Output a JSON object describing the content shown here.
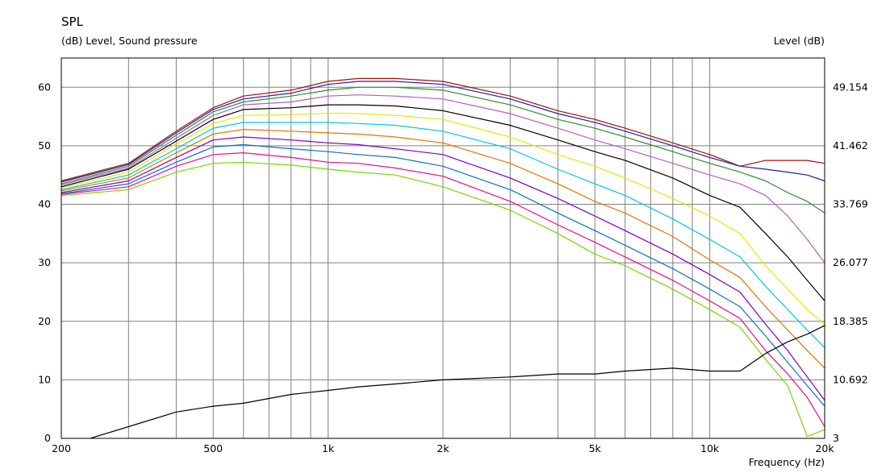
{
  "chart_data": {
    "type": "line",
    "title": "SPL",
    "ylabel_left": "(dB)  Level, Sound pressure",
    "ylabel_right": "Level  (dB)",
    "xlabel": "Frequency  (Hz)",
    "x_scale": "log",
    "xlim": [
      200,
      20000
    ],
    "ylim": [
      0,
      65
    ],
    "grid": true,
    "x_tick_labels": [
      {
        "value": 200,
        "label": "200"
      },
      {
        "value": 500,
        "label": "500"
      },
      {
        "value": 1000,
        "label": "1k"
      },
      {
        "value": 2000,
        "label": "2k"
      },
      {
        "value": 5000,
        "label": "5k"
      },
      {
        "value": 10000,
        "label": "10k"
      },
      {
        "value": 20000,
        "label": "20k"
      }
    ],
    "y_left_ticks": [
      0,
      10,
      20,
      30,
      40,
      50,
      60
    ],
    "y_right_tick_labels": [
      "3",
      "10.692",
      "18.385",
      "26.077",
      "33.769",
      "41.462",
      "49.154"
    ],
    "x": [
      200,
      300,
      400,
      500,
      600,
      800,
      1000,
      1200,
      1500,
      2000,
      3000,
      4000,
      5000,
      6000,
      8000,
      10000,
      12000,
      14000,
      16000,
      18000,
      20000
    ],
    "series": [
      {
        "color": "#a01010",
        "values": [
          44,
          47,
          52.5,
          56.5,
          58.5,
          59.5,
          61,
          61.5,
          61.5,
          61,
          58.5,
          56,
          54.5,
          53,
          50.5,
          48.5,
          46.5,
          47.5,
          47.5,
          47.5,
          47
        ]
      },
      {
        "color": "#2020a0",
        "values": [
          43.8,
          46.8,
          52.2,
          56.2,
          58,
          59,
          60.5,
          61,
          61,
          60.5,
          58,
          55.5,
          54,
          52.5,
          50,
          48,
          46.5,
          46,
          45.5,
          45,
          44
        ]
      },
      {
        "color": "#2e8b2e",
        "values": [
          43.5,
          46.5,
          51.8,
          55.8,
          57.5,
          58.5,
          59.5,
          60,
          60,
          59.5,
          57,
          54.5,
          53,
          51.5,
          49,
          47,
          45.5,
          44,
          42,
          40.5,
          38.5
        ]
      },
      {
        "color": "#b060c0",
        "values": [
          43.3,
          46.2,
          51.3,
          55.2,
          57,
          57.5,
          58.5,
          58.7,
          58.5,
          58,
          55.5,
          53,
          51,
          49.5,
          47,
          45,
          43.5,
          41.5,
          38,
          34,
          30
        ]
      },
      {
        "color": "#000000",
        "values": [
          43,
          46,
          50.8,
          54.5,
          56.2,
          56.5,
          57,
          57,
          56.8,
          56,
          53.5,
          51,
          49,
          47.5,
          44.5,
          41.5,
          39.5,
          35,
          31,
          27,
          23.5
        ]
      },
      {
        "color": "#e8e800",
        "values": [
          42.8,
          45.5,
          50.3,
          53.8,
          55.2,
          55.3,
          55.6,
          55.5,
          55.2,
          54.5,
          51.5,
          48.5,
          46.5,
          44.5,
          41,
          38,
          35,
          29.5,
          25.5,
          22,
          19.5
        ]
      },
      {
        "color": "#00c8e0",
        "values": [
          42.5,
          45,
          49.5,
          53,
          54,
          54,
          54,
          53.8,
          53.5,
          52.5,
          49.5,
          46,
          43.5,
          41.5,
          37.5,
          34,
          31,
          26,
          22,
          18.5,
          15.5
        ]
      },
      {
        "color": "#e07800",
        "values": [
          42.3,
          44.5,
          48.8,
          52,
          52.8,
          52.5,
          52.2,
          52,
          51.5,
          50.5,
          47,
          43.5,
          40.5,
          38.5,
          34.5,
          30.5,
          27.5,
          22.5,
          18.5,
          15,
          12
        ]
      },
      {
        "color": "#8000c0",
        "values": [
          42,
          44,
          48,
          51,
          51.5,
          51,
          50.5,
          50.2,
          49.5,
          48.5,
          44.5,
          41,
          38,
          35.5,
          31.5,
          28,
          25,
          19.5,
          15,
          10.5,
          6.5
        ]
      },
      {
        "color": "#1070c0",
        "values": [
          41.8,
          43.5,
          47.2,
          49.8,
          50.2,
          49.5,
          49,
          48.5,
          48,
          46.5,
          42.5,
          38.5,
          35.5,
          33,
          29,
          25.5,
          22.5,
          17.5,
          13,
          9,
          5.5
        ]
      },
      {
        "color": "#e0108a",
        "values": [
          41.7,
          43,
          46.5,
          48.5,
          48.8,
          48,
          47.2,
          47,
          46.2,
          44.8,
          40.5,
          36.5,
          33.5,
          31,
          27,
          23.5,
          20.5,
          15,
          11,
          7,
          2
        ]
      },
      {
        "color": "#78d800",
        "values": [
          41.5,
          42.5,
          45.5,
          47,
          47.2,
          46.7,
          46,
          45.5,
          45,
          43,
          39,
          35,
          31.5,
          29.5,
          25.5,
          22,
          19,
          13.5,
          9,
          0.3,
          1.5
        ]
      },
      {
        "color": "#000000",
        "values": [
          -1.5,
          2,
          4.5,
          5.5,
          6,
          7.5,
          8.2,
          8.8,
          9.3,
          10,
          10.5,
          11,
          11,
          11.5,
          12,
          11.5,
          11.5,
          14.5,
          16.5,
          17.8,
          19.3
        ]
      }
    ]
  }
}
